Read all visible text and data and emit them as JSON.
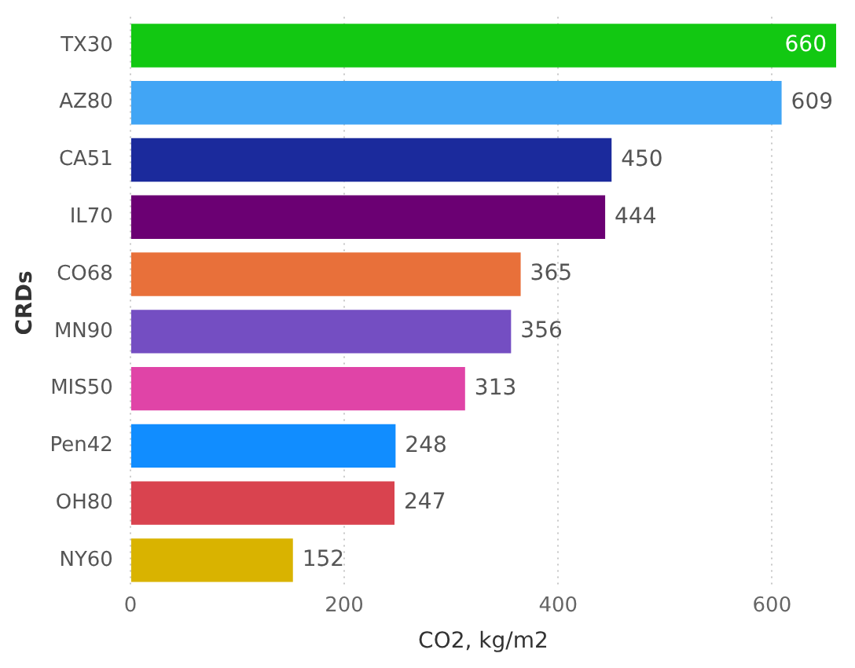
{
  "chart_data": {
    "type": "bar",
    "orientation": "horizontal",
    "xlabel": "CO2, kg/m2",
    "ylabel": "CRDs",
    "categories": [
      "TX30",
      "AZ80",
      "CA51",
      "IL70",
      "CO68",
      "MN90",
      "MIS50",
      "Pen42",
      "OH80",
      "NY60"
    ],
    "values": [
      660,
      609,
      450,
      444,
      365,
      356,
      313,
      248,
      247,
      152
    ],
    "colors": [
      "#12c812",
      "#41a5f5",
      "#1b2a9c",
      "#6b0073",
      "#e8703a",
      "#744ec2",
      "#e044a7",
      "#118dff",
      "#d9434f",
      "#d9b300"
    ],
    "xlim": [
      0,
      660
    ],
    "xticks": [
      0,
      200,
      400,
      600
    ],
    "grid": "x",
    "data_labels": true,
    "legend": false
  }
}
